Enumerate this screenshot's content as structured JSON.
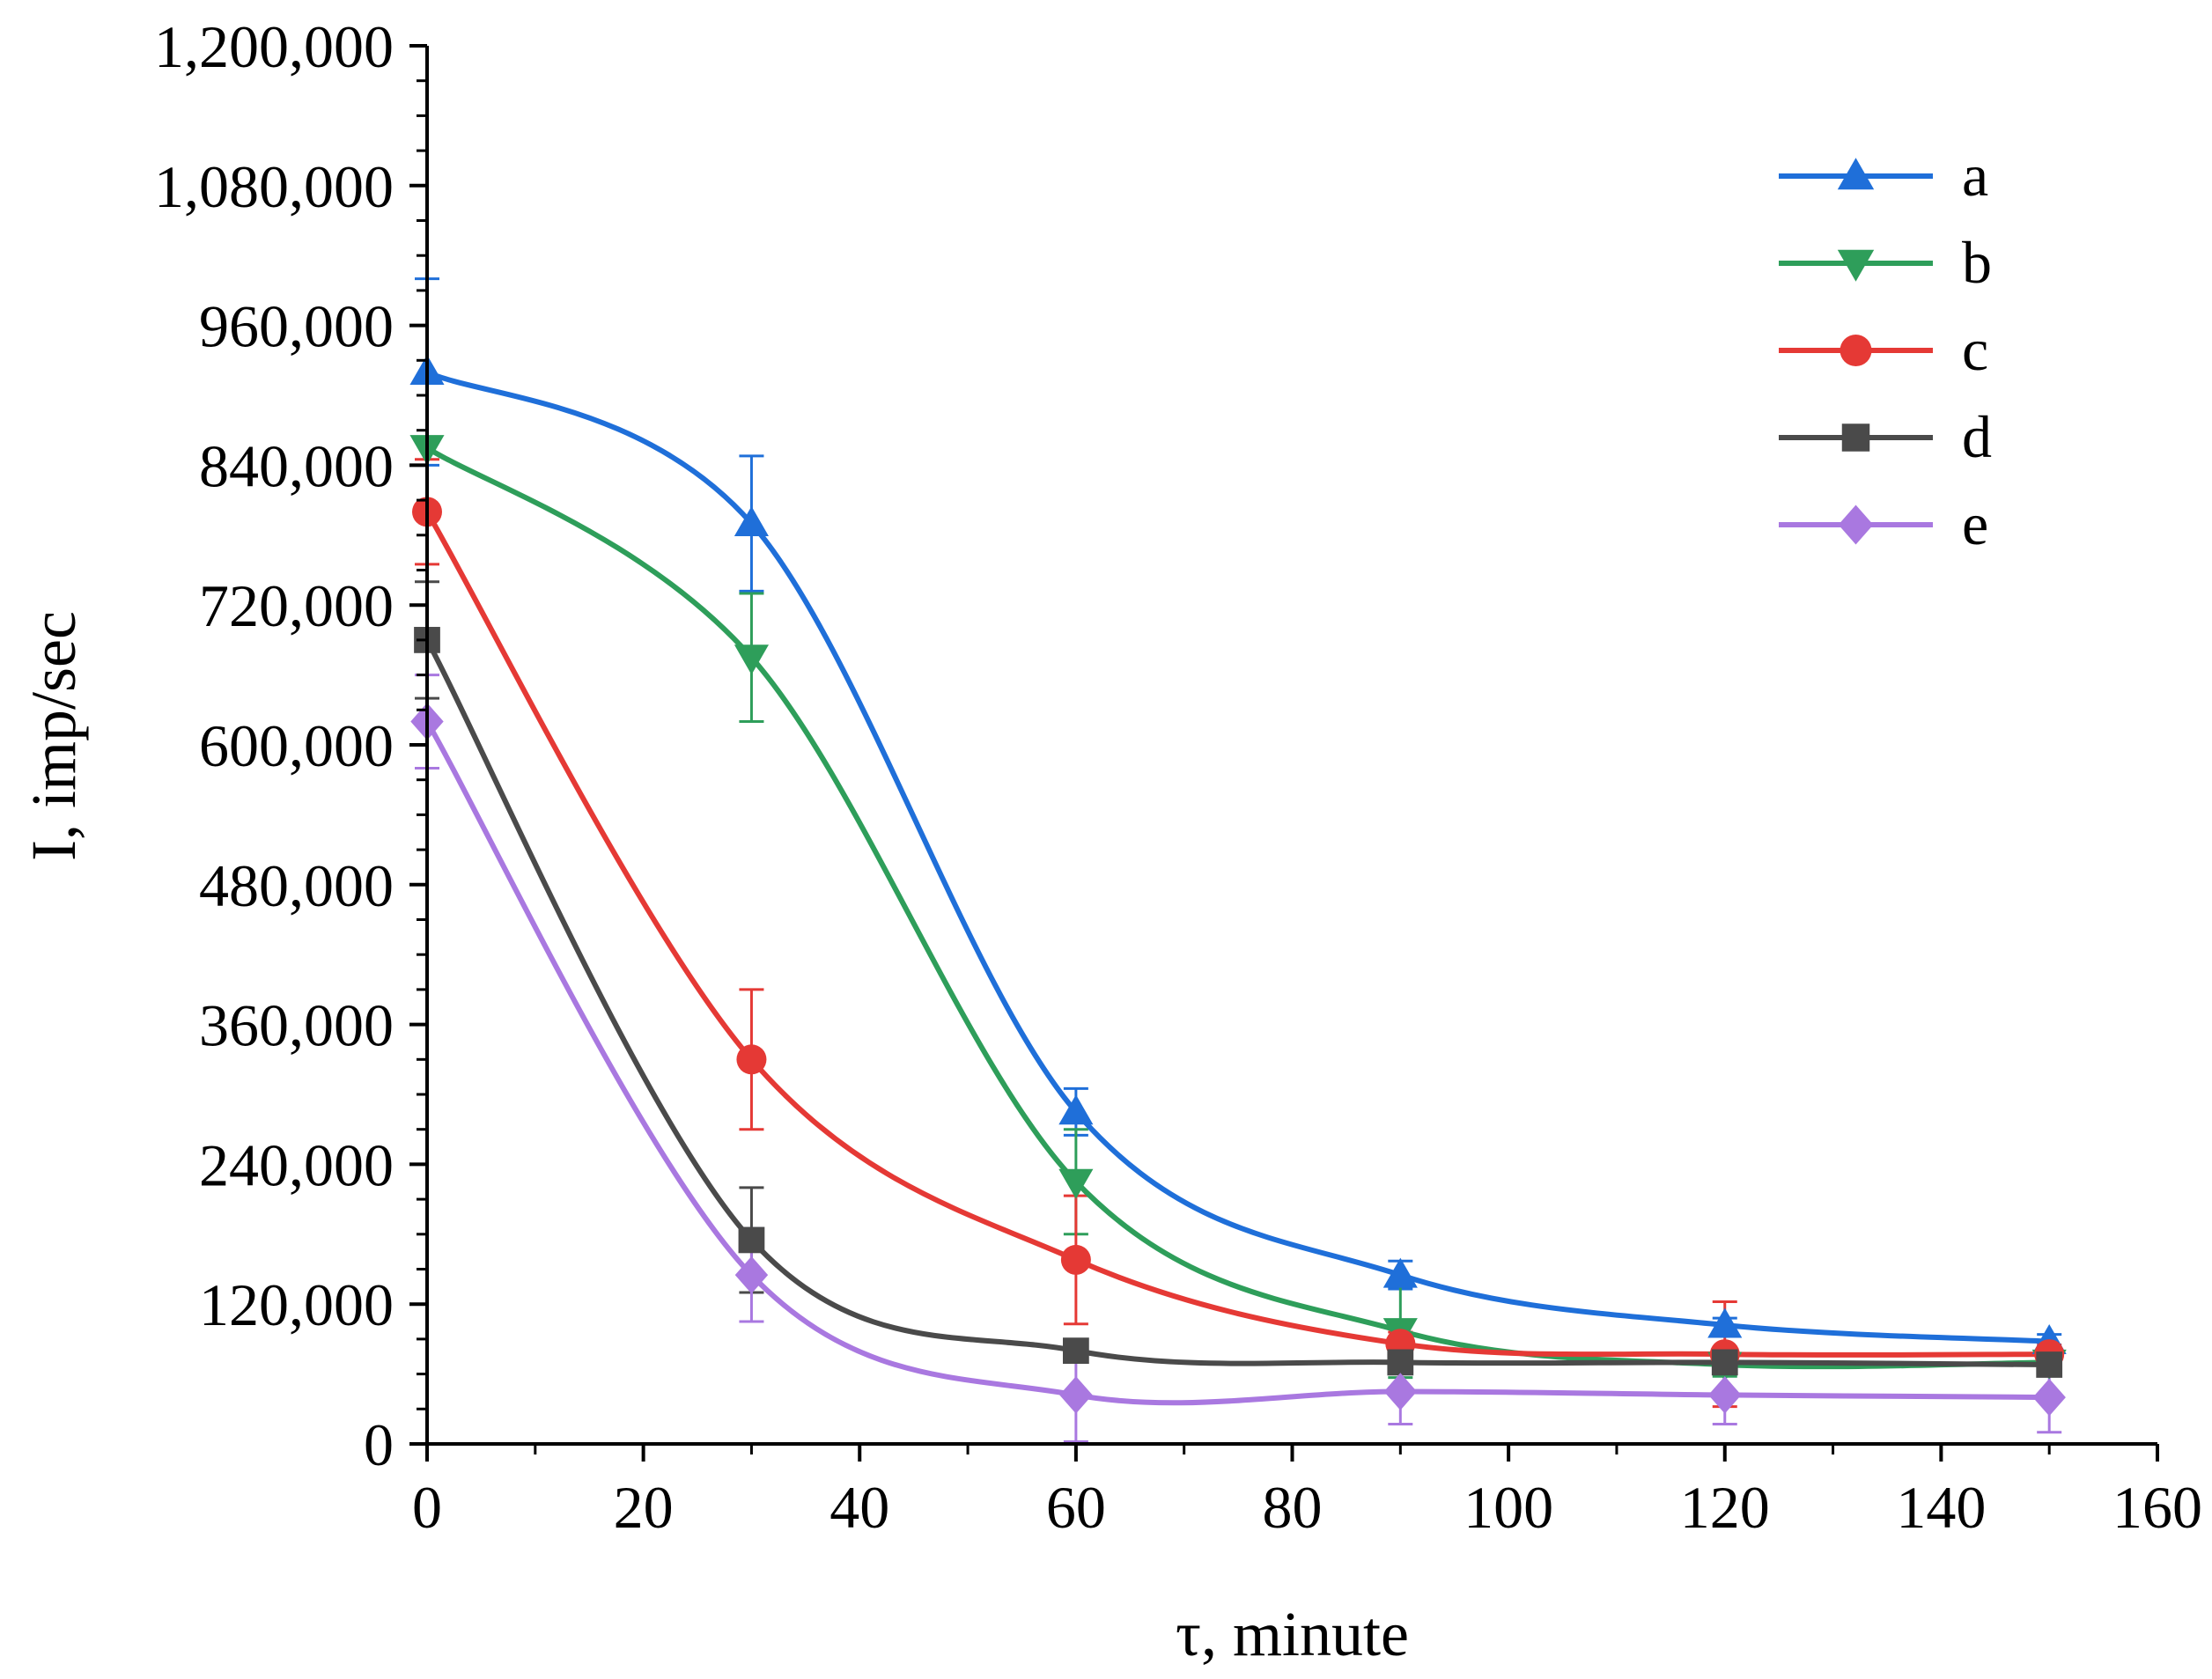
{
  "chart_data": {
    "type": "line",
    "title": "",
    "xlabel": "τ, minute",
    "ylabel": "I, imp/sec",
    "xlim": [
      0,
      160
    ],
    "ylim": [
      0,
      1200000
    ],
    "xticks": [
      0,
      20,
      40,
      60,
      80,
      100,
      120,
      140,
      160
    ],
    "xtick_labels": [
      "0",
      "20",
      "40",
      "60",
      "80",
      "100",
      "120",
      "140",
      "160"
    ],
    "yticks": [
      0,
      120000,
      240000,
      360000,
      480000,
      600000,
      720000,
      840000,
      960000,
      1080000,
      1200000
    ],
    "ytick_labels": [
      "0",
      "120,000",
      "240,000",
      "360,000",
      "480,000",
      "600,000",
      "720,000",
      "840,000",
      "960,000",
      "1,080,000",
      "1,200,000"
    ],
    "grid": false,
    "legend_position": "top-right",
    "x": [
      0,
      30,
      60,
      90,
      120,
      150
    ],
    "series": [
      {
        "name": "a",
        "color": "#1f6fd9",
        "marker": "triangle-up",
        "values": [
          920000,
          790000,
          285000,
          145000,
          102000,
          88000
        ],
        "errors": [
          80000,
          58000,
          20000,
          12000,
          6000,
          6000
        ]
      },
      {
        "name": "b",
        "color": "#2e9e5a",
        "marker": "triangle-down",
        "values": [
          855000,
          675000,
          225000,
          97000,
          68000,
          70000
        ],
        "errors": [
          60000,
          55000,
          45000,
          40000,
          10000,
          8000
        ]
      },
      {
        "name": "c",
        "color": "#e53935",
        "marker": "circle",
        "values": [
          800000,
          330000,
          158000,
          86000,
          77000,
          77000
        ],
        "errors": [
          45000,
          60000,
          55000,
          10000,
          45000,
          8000
        ]
      },
      {
        "name": "d",
        "color": "#4a4a4a",
        "marker": "square",
        "values": [
          690000,
          175000,
          80000,
          70000,
          70000,
          68000
        ],
        "errors": [
          50000,
          45000,
          8000,
          10000,
          8000,
          8000
        ]
      },
      {
        "name": "e",
        "color": "#a978e0",
        "marker": "diamond",
        "values": [
          620000,
          145000,
          42000,
          45000,
          42000,
          40000
        ],
        "errors": [
          40000,
          40000,
          40000,
          28000,
          25000,
          30000
        ]
      }
    ]
  }
}
